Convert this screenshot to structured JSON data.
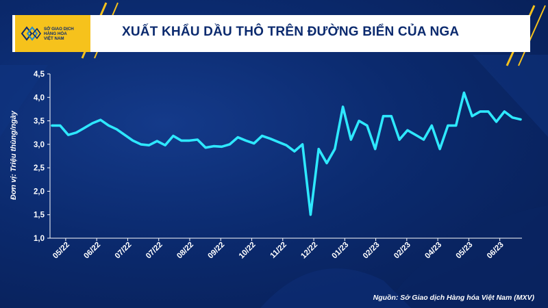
{
  "header": {
    "title": "XUẤT KHẨU DẦU THÔ TRÊN ĐƯỜNG BIỂN CỦA NGA",
    "logo_lines": [
      "SỞ GIAO DỊCH",
      "HÀNG HÓA",
      "VIỆT NAM"
    ]
  },
  "colors": {
    "background": "#0b2a6e",
    "accent": "#f6c21c",
    "line": "#2ee8ff",
    "text": "#ffffff"
  },
  "footer": {
    "source": "Nguồn: Sở Giao dịch Hàng hóa Việt Nam (MXV)"
  },
  "chart_data": {
    "type": "line",
    "title": "XUẤT KHẨU DẦU THÔ TRÊN ĐƯỜNG BIỂN CỦA NGA",
    "ylabel": "Đơn vị: Triệu thùng/ngày",
    "xlabel": "",
    "ylim": [
      1.0,
      4.5
    ],
    "yticks": [
      "1,0",
      "1,5",
      "2,0",
      "2,5",
      "3,0",
      "3,5",
      "4,0",
      "4,5"
    ],
    "ytick_values": [
      1.0,
      1.5,
      2.0,
      2.5,
      3.0,
      3.5,
      4.0,
      4.5
    ],
    "xticks": [
      "05/22",
      "06/22",
      "07/22",
      "07/22",
      "08/22",
      "09/22",
      "10/22",
      "11/22",
      "12/22",
      "01/23",
      "02/23",
      "02/23",
      "04/23",
      "05/23",
      "06/23"
    ],
    "grid": false,
    "series": [
      {
        "values": [
          3.4,
          3.4,
          3.2,
          3.25,
          3.35,
          3.45,
          3.52,
          3.4,
          3.32,
          3.2,
          3.08,
          3.0,
          2.98,
          3.07,
          2.98,
          3.18,
          3.08,
          3.08,
          3.1,
          2.93,
          2.96,
          2.95,
          3.0,
          3.15,
          3.08,
          3.02,
          3.18,
          3.12,
          3.05,
          2.98,
          2.85,
          3.0,
          1.5,
          2.9,
          2.6,
          2.9,
          3.8,
          3.1,
          3.5,
          3.4,
          2.9,
          3.6,
          3.6,
          3.1,
          3.3,
          3.2,
          3.1,
          3.4,
          2.9,
          3.4,
          3.4,
          4.1,
          3.6,
          3.7,
          3.7,
          3.48,
          3.7,
          3.57,
          3.53
        ]
      }
    ]
  }
}
